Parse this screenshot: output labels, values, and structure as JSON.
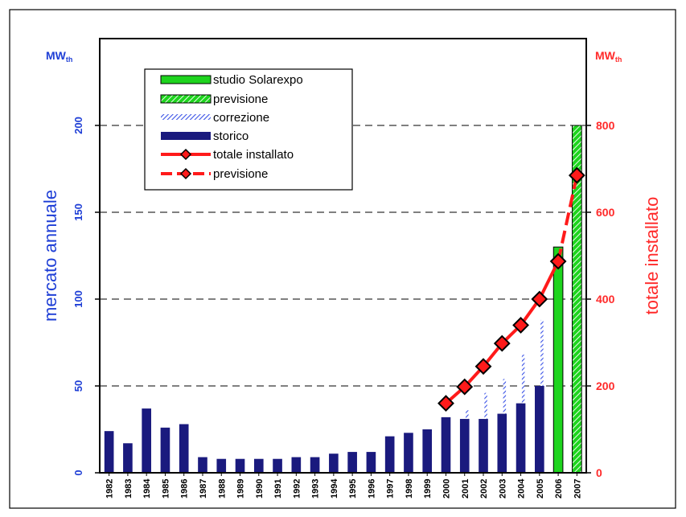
{
  "colors": {
    "historic_bar": "#1a1a7e",
    "solarexpo_bar": "#1ed41e",
    "forecast_bar_stripe": "#62e062",
    "correction_stripe": "#3a52e6",
    "total_line": "#ff1a1a",
    "marker_fill": "#ff1a1a",
    "marker_stroke": "#000000",
    "left_axis_text": "#1f3fd6",
    "right_axis_text": "#ff2a2a"
  },
  "chart_data": {
    "type": "bar",
    "left_axis": {
      "unit": "MW",
      "unit_sub": "th",
      "label": "mercato annuale",
      "ticks": [
        0,
        50,
        100,
        150,
        200
      ],
      "tick_labels": [
        "0",
        "50",
        "100",
        "150",
        "200"
      ],
      "ylim": [
        0,
        250
      ]
    },
    "right_axis": {
      "unit": "MW",
      "unit_sub": "th",
      "label": "totale installato",
      "ticks": [
        0,
        200,
        400,
        600,
        800
      ],
      "tick_labels": [
        "0",
        "200",
        "400",
        "600",
        "800"
      ],
      "ylim": [
        0,
        1000
      ]
    },
    "grid": "dashed horizontal at 50, 100, 150, 200",
    "legend_position": "top-left",
    "categories": [
      "1982",
      "1983",
      "1984",
      "1985",
      "1986",
      "1987",
      "1988",
      "1989",
      "1990",
      "1991",
      "1992",
      "1993",
      "1994",
      "1995",
      "1996",
      "1997",
      "1998",
      "1999",
      "2000",
      "2001",
      "2002",
      "2003",
      "2004",
      "2005",
      "2006",
      "2007"
    ],
    "series": [
      {
        "name": "storico",
        "kind": "bar",
        "values": [
          24,
          17,
          37,
          26,
          28,
          9,
          8,
          8,
          8,
          8,
          9,
          9,
          11,
          12,
          12,
          21,
          23,
          25,
          32,
          31,
          31,
          34,
          40,
          50,
          null,
          null
        ]
      },
      {
        "name": "correzione",
        "kind": "bar-stack-hatched",
        "values": [
          null,
          null,
          null,
          null,
          null,
          null,
          null,
          null,
          null,
          null,
          null,
          null,
          null,
          null,
          null,
          null,
          null,
          null,
          null,
          5,
          15,
          20,
          28,
          38,
          null,
          null
        ]
      },
      {
        "name": "studio Solarexpo",
        "kind": "bar",
        "values": [
          null,
          null,
          null,
          null,
          null,
          null,
          null,
          null,
          null,
          null,
          null,
          null,
          null,
          null,
          null,
          null,
          null,
          null,
          null,
          null,
          null,
          null,
          null,
          null,
          130,
          null
        ]
      },
      {
        "name": "previsione",
        "kind": "bar-hatched",
        "values": [
          null,
          null,
          null,
          null,
          null,
          null,
          null,
          null,
          null,
          null,
          null,
          null,
          null,
          null,
          null,
          null,
          null,
          null,
          null,
          null,
          null,
          null,
          null,
          null,
          null,
          200
        ]
      },
      {
        "name": "totale installato",
        "kind": "line-right-axis",
        "x": [
          "2000",
          "2001",
          "2002",
          "2003",
          "2004",
          "2005",
          "2006"
        ],
        "values": [
          160,
          198,
          245,
          298,
          340,
          400,
          487
        ]
      },
      {
        "name": "previsione",
        "kind": "dashed-line-right-axis",
        "x": [
          "2006",
          "2007"
        ],
        "values": [
          487,
          685
        ]
      }
    ],
    "legend": [
      {
        "label": "studio Solarexpo",
        "swatch": "solid-green"
      },
      {
        "label": "previsione",
        "swatch": "hatched-green"
      },
      {
        "label": "correzione",
        "swatch": "hatched-blue"
      },
      {
        "label": "storico",
        "swatch": "solid-navy"
      },
      {
        "label": "totale installato",
        "swatch": "solid-red-line-marker"
      },
      {
        "label": "previsione",
        "swatch": "dashed-red-line-marker"
      }
    ]
  }
}
